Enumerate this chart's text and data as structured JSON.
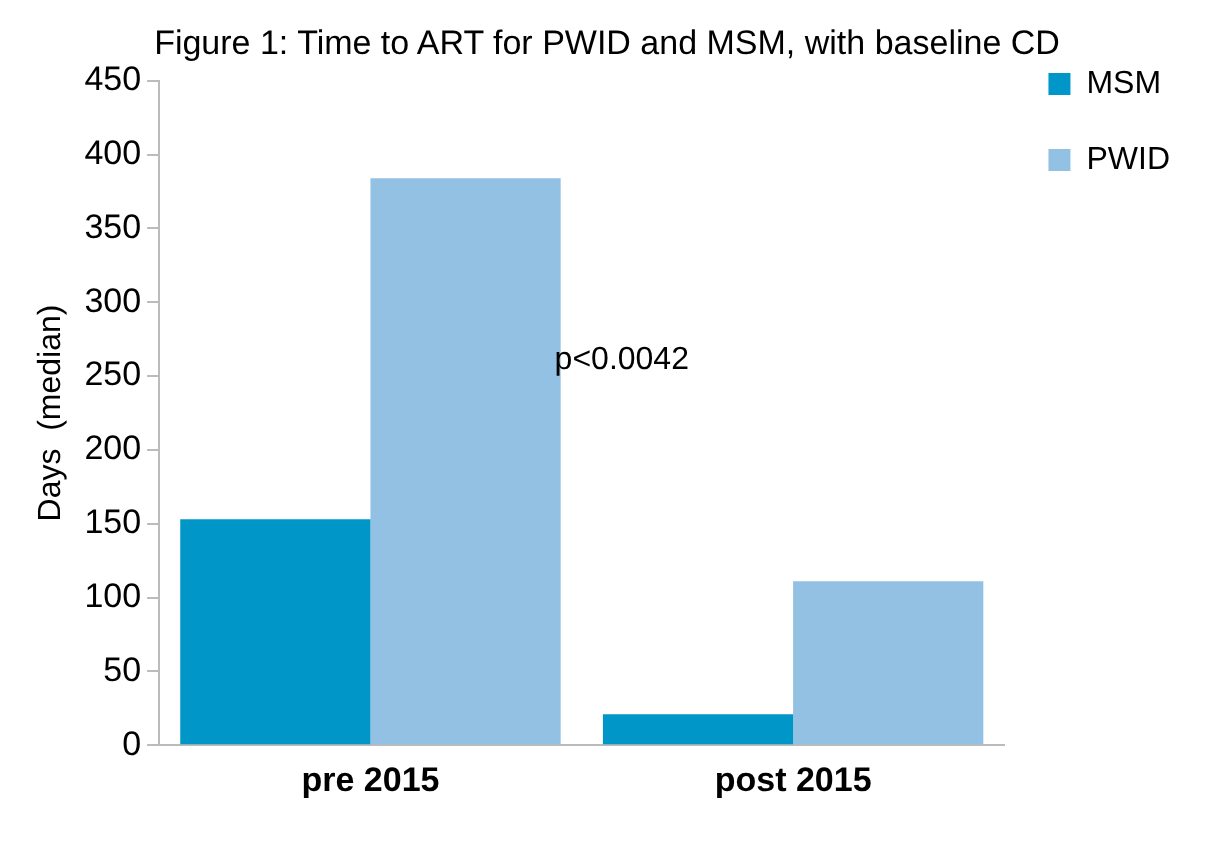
{
  "chart_data": {
    "type": "bar",
    "title": "Figure 1: Time to ART for PWID and MSM, with baseline CD",
    "ylabel": "Days  (median)",
    "categories": [
      "pre 2015",
      "post 2015"
    ],
    "series": [
      {
        "name": "MSM",
        "color": "#0096c8",
        "values": [
          153,
          21
        ]
      },
      {
        "name": "PWID",
        "color": "#92c1e4",
        "values": [
          384,
          111
        ]
      }
    ],
    "ylim": [
      0,
      450
    ],
    "yticks": [
      0,
      50,
      100,
      150,
      200,
      250,
      300,
      350,
      400,
      450
    ],
    "grid": false,
    "legend": "right",
    "annotations": [
      "p<0.0042"
    ]
  }
}
